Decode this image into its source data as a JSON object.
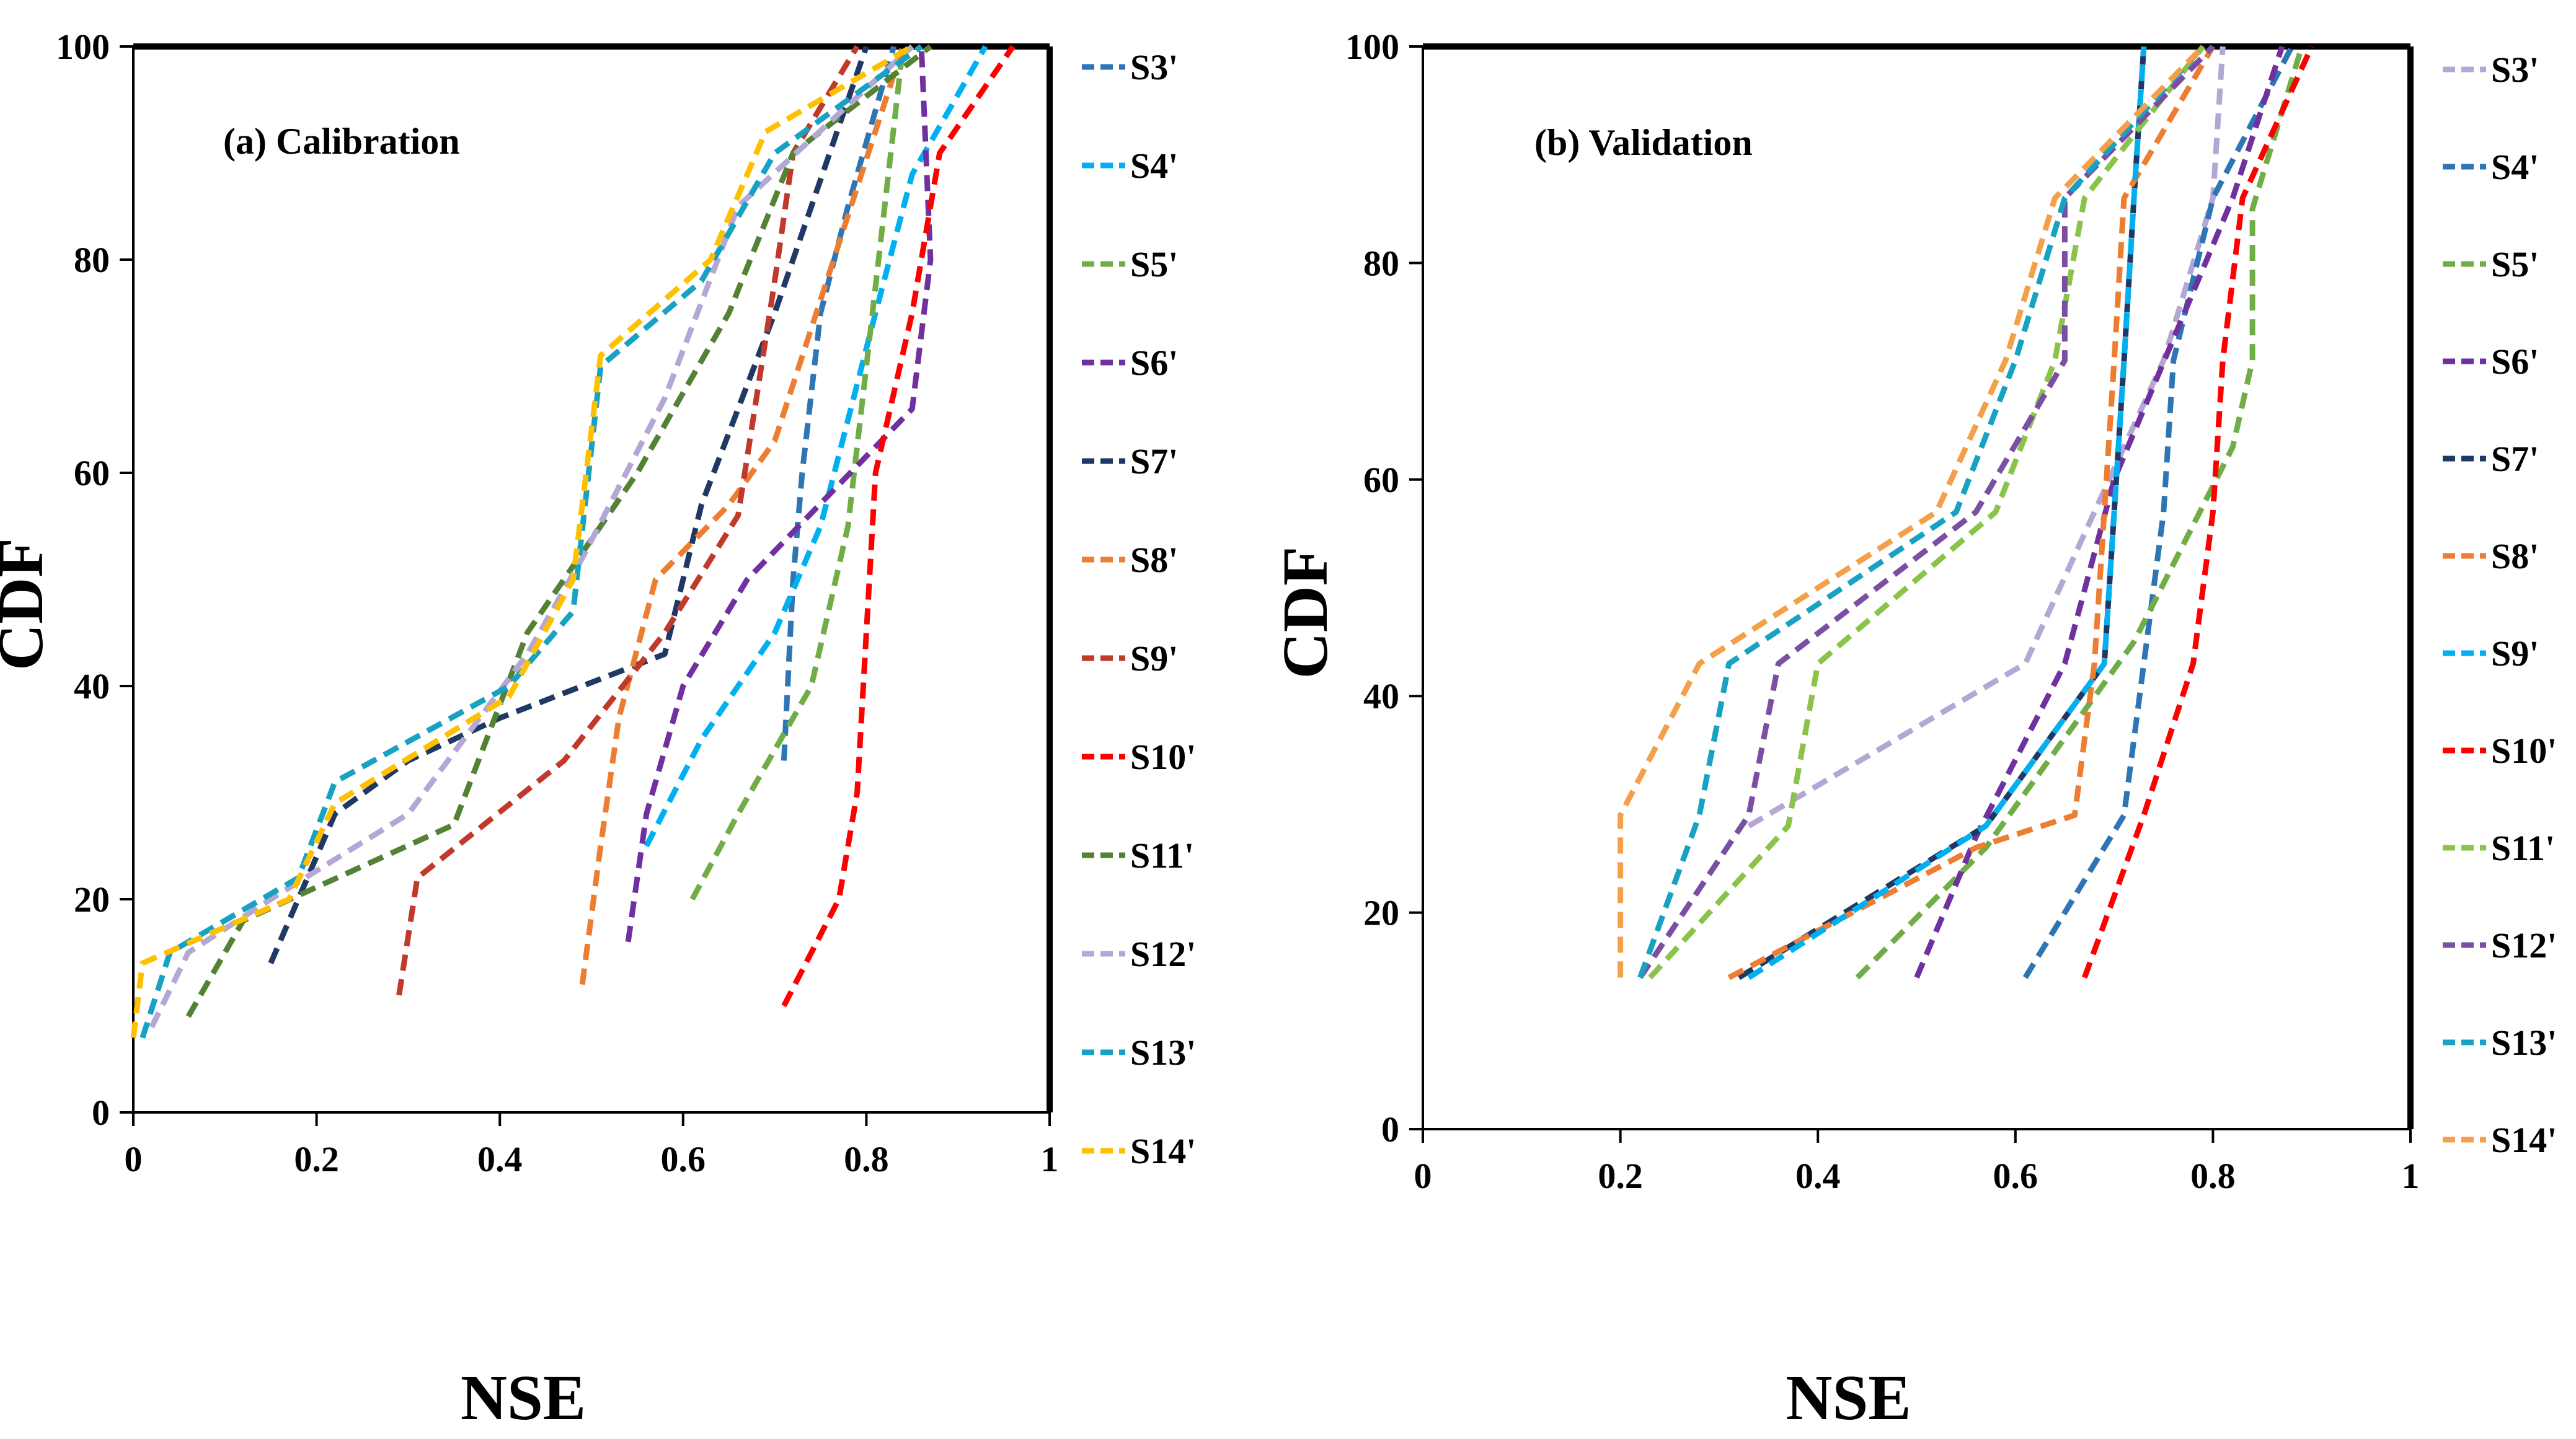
{
  "chart_data": [
    {
      "type": "line",
      "title": "(a) Calibration",
      "xlabel": "NSE",
      "ylabel": "CDF",
      "xlim": [
        0,
        1
      ],
      "ylim": [
        0,
        100
      ],
      "x_ticks": [
        "0",
        "0.2",
        "0.4",
        "0.6",
        "0.8",
        "1"
      ],
      "y_ticks": [
        "0",
        "20",
        "40",
        "60",
        "80",
        "100"
      ],
      "grid": false,
      "legend_position": "right",
      "series": [
        {
          "name": "S3'",
          "color": "#2E75B6",
          "points": [
            [
              0.71,
              33
            ],
            [
              0.72,
              50
            ],
            [
              0.73,
              60
            ],
            [
              0.75,
              75
            ],
            [
              0.78,
              85
            ],
            [
              0.83,
              100
            ]
          ]
        },
        {
          "name": "S4'",
          "color": "#00B0F0",
          "points": [
            [
              0.56,
              25
            ],
            [
              0.62,
              35
            ],
            [
              0.7,
              45
            ],
            [
              0.75,
              55
            ],
            [
              0.81,
              75
            ],
            [
              0.85,
              88
            ],
            [
              0.93,
              100
            ]
          ]
        },
        {
          "name": "S5'",
          "color": "#70AD47",
          "points": [
            [
              0.61,
              20
            ],
            [
              0.66,
              28
            ],
            [
              0.74,
              40
            ],
            [
              0.78,
              55
            ],
            [
              0.8,
              70
            ],
            [
              0.82,
              85
            ],
            [
              0.84,
              100
            ]
          ]
        },
        {
          "name": "S6'",
          "color": "#7030A0",
          "points": [
            [
              0.54,
              16
            ],
            [
              0.56,
              28
            ],
            [
              0.6,
              40
            ],
            [
              0.67,
              50
            ],
            [
              0.85,
              66
            ],
            [
              0.87,
              80
            ],
            [
              0.86,
              100
            ]
          ]
        },
        {
          "name": "S7'",
          "color": "#1F3864",
          "points": [
            [
              0.15,
              14
            ],
            [
              0.22,
              28
            ],
            [
              0.3,
              33
            ],
            [
              0.4,
              37
            ],
            [
              0.58,
              43
            ],
            [
              0.62,
              57
            ],
            [
              0.7,
              75
            ],
            [
              0.8,
              100
            ]
          ]
        },
        {
          "name": "S8'",
          "color": "#ED7D31",
          "points": [
            [
              0.49,
              12
            ],
            [
              0.51,
              25
            ],
            [
              0.53,
              37
            ],
            [
              0.57,
              50
            ],
            [
              0.65,
              57
            ],
            [
              0.7,
              63
            ],
            [
              0.84,
              100
            ]
          ]
        },
        {
          "name": "S9'",
          "color": "#C0392B",
          "points": [
            [
              0.29,
              11
            ],
            [
              0.31,
              22
            ],
            [
              0.47,
              33
            ],
            [
              0.58,
              45
            ],
            [
              0.66,
              56
            ],
            [
              0.7,
              78
            ],
            [
              0.72,
              90
            ],
            [
              0.79,
              100
            ]
          ]
        },
        {
          "name": "S10'",
          "color": "#FF0000",
          "points": [
            [
              0.71,
              10
            ],
            [
              0.77,
              20
            ],
            [
              0.79,
              30
            ],
            [
              0.81,
              60
            ],
            [
              0.85,
              75
            ],
            [
              0.88,
              90
            ],
            [
              0.96,
              100
            ]
          ]
        },
        {
          "name": "S11'",
          "color": "#548235",
          "points": [
            [
              0.06,
              9
            ],
            [
              0.12,
              18
            ],
            [
              0.35,
              27
            ],
            [
              0.43,
              45
            ],
            [
              0.55,
              60
            ],
            [
              0.65,
              75
            ],
            [
              0.72,
              90
            ],
            [
              0.87,
              100
            ]
          ]
        },
        {
          "name": "S12'",
          "color": "#B4A7D6",
          "points": [
            [
              0.02,
              8
            ],
            [
              0.06,
              15
            ],
            [
              0.15,
              20
            ],
            [
              0.3,
              28
            ],
            [
              0.43,
              43
            ],
            [
              0.49,
              52
            ],
            [
              0.58,
              67
            ],
            [
              0.66,
              85
            ],
            [
              0.85,
              100
            ]
          ]
        },
        {
          "name": "S13'",
          "color": "#17A2C4",
          "points": [
            [
              0.01,
              7
            ],
            [
              0.04,
              15
            ],
            [
              0.18,
              22
            ],
            [
              0.22,
              31
            ],
            [
              0.41,
              40
            ],
            [
              0.48,
              47
            ],
            [
              0.51,
              70
            ],
            [
              0.62,
              78
            ],
            [
              0.7,
              90
            ],
            [
              0.86,
              100
            ]
          ]
        },
        {
          "name": "S14'",
          "color": "#FFC000",
          "points": [
            [
              0.0,
              7
            ],
            [
              0.01,
              14
            ],
            [
              0.17,
              20
            ],
            [
              0.22,
              29
            ],
            [
              0.41,
              39
            ],
            [
              0.48,
              50
            ],
            [
              0.51,
              71
            ],
            [
              0.63,
              80
            ],
            [
              0.69,
              92
            ],
            [
              0.85,
              100
            ]
          ]
        }
      ]
    },
    {
      "type": "line",
      "title": "(b) Validation",
      "xlabel": "NSE",
      "ylabel": "CDF",
      "xlim": [
        0,
        1
      ],
      "ylim": [
        0,
        100
      ],
      "x_ticks": [
        "0",
        "0.2",
        "0.4",
        "0.6",
        "0.8",
        "1"
      ],
      "y_ticks": [
        "0",
        "20",
        "40",
        "60",
        "80",
        "100"
      ],
      "grid": false,
      "legend_position": "right",
      "series": [
        {
          "name": "S3'",
          "color": "#B4A7D6",
          "points": [
            [
              0.33,
              28
            ],
            [
              0.61,
              43
            ],
            [
              0.68,
              57
            ],
            [
              0.75,
              71
            ],
            [
              0.8,
              86
            ],
            [
              0.81,
              100
            ]
          ]
        },
        {
          "name": "S4'",
          "color": "#2E75B6",
          "points": [
            [
              0.61,
              14
            ],
            [
              0.71,
              29
            ],
            [
              0.73,
              43
            ],
            [
              0.75,
              57
            ],
            [
              0.76,
              71
            ],
            [
              0.8,
              86
            ],
            [
              0.88,
              100
            ]
          ]
        },
        {
          "name": "S5'",
          "color": "#70AD47",
          "points": [
            [
              0.44,
              14
            ],
            [
              0.57,
              26
            ],
            [
              0.72,
              45
            ],
            [
              0.82,
              63
            ],
            [
              0.84,
              71
            ],
            [
              0.84,
              85
            ],
            [
              0.89,
              100
            ]
          ]
        },
        {
          "name": "S6'",
          "color": "#7030A0",
          "points": [
            [
              0.5,
              14
            ],
            [
              0.56,
              27
            ],
            [
              0.65,
              43
            ],
            [
              0.7,
              60
            ],
            [
              0.76,
              73
            ],
            [
              0.82,
              86
            ],
            [
              0.87,
              100
            ]
          ]
        },
        {
          "name": "S7'",
          "color": "#1F3864",
          "points": [
            [
              0.32,
              14
            ],
            [
              0.57,
              28
            ],
            [
              0.69,
              43
            ],
            [
              0.7,
              57
            ],
            [
              0.71,
              71
            ],
            [
              0.72,
              86
            ],
            [
              0.73,
              100
            ]
          ]
        },
        {
          "name": "S8'",
          "color": "#ED7D31",
          "points": [
            [
              0.31,
              14
            ],
            [
              0.56,
              26
            ],
            [
              0.66,
              29
            ],
            [
              0.68,
              43
            ],
            [
              0.69,
              57
            ],
            [
              0.7,
              71
            ],
            [
              0.71,
              86
            ],
            [
              0.8,
              100
            ]
          ]
        },
        {
          "name": "S9'",
          "color": "#00B0F0",
          "points": [
            [
              0.33,
              14
            ],
            [
              0.57,
              28
            ],
            [
              0.69,
              43
            ],
            [
              0.7,
              57
            ],
            [
              0.71,
              71
            ],
            [
              0.72,
              86
            ],
            [
              0.73,
              100
            ]
          ]
        },
        {
          "name": "S10'",
          "color": "#FF0000",
          "points": [
            [
              0.67,
              14
            ],
            [
              0.73,
              29
            ],
            [
              0.78,
              43
            ],
            [
              0.8,
              57
            ],
            [
              0.81,
              71
            ],
            [
              0.83,
              86
            ],
            [
              0.9,
              100
            ]
          ]
        },
        {
          "name": "S11'",
          "color": "#8BC34A",
          "points": [
            [
              0.23,
              14
            ],
            [
              0.37,
              28
            ],
            [
              0.4,
              43
            ],
            [
              0.58,
              57
            ],
            [
              0.64,
              71
            ],
            [
              0.67,
              86
            ],
            [
              0.79,
              100
            ]
          ]
        },
        {
          "name": "S12'",
          "color": "#7A4FA3",
          "points": [
            [
              0.22,
              14
            ],
            [
              0.33,
              29
            ],
            [
              0.36,
              43
            ],
            [
              0.56,
              57
            ],
            [
              0.65,
              71
            ],
            [
              0.65,
              86
            ],
            [
              0.8,
              100
            ]
          ]
        },
        {
          "name": "S13'",
          "color": "#17A2C4",
          "points": [
            [
              0.22,
              14
            ],
            [
              0.28,
              29
            ],
            [
              0.31,
              43
            ],
            [
              0.54,
              57
            ],
            [
              0.6,
              71
            ],
            [
              0.65,
              86
            ],
            [
              0.79,
              100
            ]
          ]
        },
        {
          "name": "S14'",
          "color": "#F4A04A",
          "points": [
            [
              0.2,
              14
            ],
            [
              0.2,
              29
            ],
            [
              0.28,
              43
            ],
            [
              0.52,
              57
            ],
            [
              0.59,
              71
            ],
            [
              0.64,
              86
            ],
            [
              0.79,
              100
            ]
          ]
        }
      ]
    }
  ]
}
